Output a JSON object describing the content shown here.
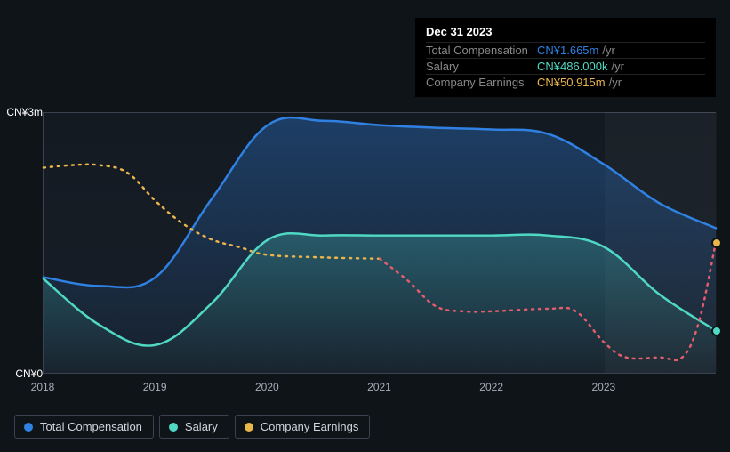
{
  "chart": {
    "type": "area+line",
    "background_color": "#0f1419",
    "plot_background": "#151c24",
    "grid_color": "#3a4250",
    "text_color": "#a6adbb",
    "font_size": 12,
    "y_axis": {
      "min": 0,
      "max": 3,
      "unit": "CN¥_m",
      "ticks": [
        {
          "v": 0,
          "label": "CN¥0"
        },
        {
          "v": 3,
          "label": "CN¥3m"
        }
      ]
    },
    "x_axis": {
      "min": 2018,
      "max": 2024,
      "ticks": [
        {
          "v": 2018,
          "label": "2018"
        },
        {
          "v": 2019,
          "label": "2019"
        },
        {
          "v": 2020,
          "label": "2020"
        },
        {
          "v": 2021,
          "label": "2021"
        },
        {
          "v": 2022,
          "label": "2022"
        },
        {
          "v": 2023,
          "label": "2023"
        }
      ]
    },
    "hover_band": {
      "from": 2023.0,
      "to": 2024.0,
      "fill": "rgba(255,255,255,0.03)"
    },
    "series": {
      "total_compensation": {
        "label": "Total Compensation",
        "color": "#2f81e3",
        "type": "area",
        "fill_opacity": 0.35,
        "line_width": 2.5,
        "points": [
          [
            2018.0,
            1.1
          ],
          [
            2018.5,
            1.0
          ],
          [
            2019.0,
            1.1
          ],
          [
            2019.5,
            2.0
          ],
          [
            2020.0,
            2.85
          ],
          [
            2020.5,
            2.9
          ],
          [
            2021.0,
            2.85
          ],
          [
            2021.5,
            2.82
          ],
          [
            2022.0,
            2.8
          ],
          [
            2022.5,
            2.75
          ],
          [
            2023.0,
            2.4
          ],
          [
            2023.5,
            1.95
          ],
          [
            2024.0,
            1.665
          ]
        ]
      },
      "salary": {
        "label": "Salary",
        "color": "#4fd9c4",
        "type": "area",
        "fill_opacity": 0.25,
        "line_width": 2.5,
        "points": [
          [
            2018.0,
            1.08
          ],
          [
            2018.5,
            0.55
          ],
          [
            2019.0,
            0.32
          ],
          [
            2019.5,
            0.8
          ],
          [
            2020.0,
            1.53
          ],
          [
            2020.5,
            1.58
          ],
          [
            2021.0,
            1.58
          ],
          [
            2021.5,
            1.58
          ],
          [
            2022.0,
            1.58
          ],
          [
            2022.5,
            1.58
          ],
          [
            2023.0,
            1.45
          ],
          [
            2023.5,
            0.9
          ],
          [
            2024.0,
            0.486
          ]
        ]
      },
      "company_earnings": {
        "label": "Company Earnings",
        "color": "#eab54a",
        "type": "dotted-line",
        "secondary_color": "#e35d6a",
        "secondary_from_x": 2021.0,
        "line_width": 2.5,
        "scale_to_m": 0.0295,
        "points": [
          [
            2018.0,
            80.0
          ],
          [
            2018.25,
            81.0
          ],
          [
            2018.5,
            81.0
          ],
          [
            2018.75,
            78.0
          ],
          [
            2019.0,
            67.0
          ],
          [
            2019.25,
            58.0
          ],
          [
            2019.5,
            52.0
          ],
          [
            2019.75,
            49.0
          ],
          [
            2020.0,
            46.0
          ],
          [
            2020.5,
            45.0
          ],
          [
            2021.0,
            44.5
          ],
          [
            2021.25,
            36.0
          ],
          [
            2021.5,
            26.0
          ],
          [
            2021.75,
            24.0
          ],
          [
            2022.0,
            24.0
          ],
          [
            2022.5,
            25.0
          ],
          [
            2022.75,
            24.0
          ],
          [
            2023.0,
            12.0
          ],
          [
            2023.2,
            6.0
          ],
          [
            2023.5,
            6.0
          ],
          [
            2023.7,
            6.0
          ],
          [
            2023.85,
            20.0
          ],
          [
            2024.0,
            50.915
          ]
        ]
      }
    },
    "legend_order": [
      "total_compensation",
      "salary",
      "company_earnings"
    ],
    "tooltip": {
      "title": "Dec 31 2023",
      "rows": [
        {
          "label": "Total Compensation",
          "value": "CN¥1.665m",
          "suffix": "/yr",
          "color": "#2f81e3"
        },
        {
          "label": "Salary",
          "value": "CN¥486.000k",
          "suffix": "/yr",
          "color": "#4fd9c4"
        },
        {
          "label": "Company Earnings",
          "value": "CN¥50.915m",
          "suffix": "/yr",
          "color": "#eab54a"
        }
      ]
    },
    "end_markers": [
      {
        "series": "company_earnings",
        "x": 2024.0,
        "y_scaled": 1.5,
        "fill": "#eab54a",
        "stroke": "#0f1419"
      },
      {
        "series": "salary",
        "x": 2024.0,
        "y_scaled": 0.486,
        "fill": "#4fd9c4",
        "stroke": "#0f1419"
      }
    ]
  }
}
